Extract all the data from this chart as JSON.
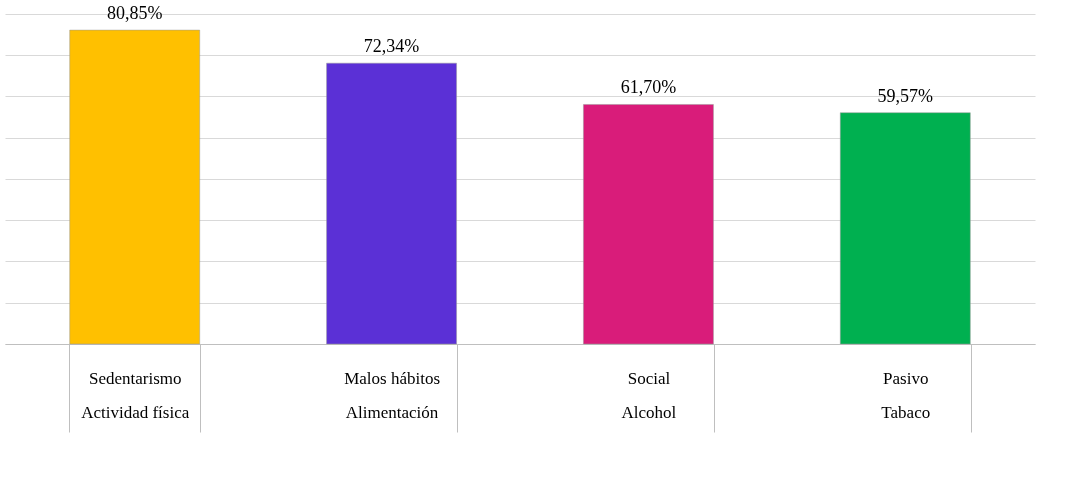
{
  "chart_data": {
    "type": "bar",
    "categories": [
      "Sedentarismo\nActividad física",
      "Malos hábitos\nAlimentación",
      "Social\nAlcohol",
      "Pasivo\nTabaco"
    ],
    "values": [
      80.85,
      72.34,
      61.7,
      59.57
    ],
    "colors": [
      "#ffc000",
      "#5b30d6",
      "#d91c7a",
      "#00b050"
    ],
    "value_labels": [
      "80,85%",
      "72,34%",
      "61,70%",
      "59,57%"
    ],
    "ylim": [
      0,
      85
    ],
    "yticks": [
      {
        "value": 0,
        "label": null
      },
      {
        "value": 10.6,
        "label": null
      },
      {
        "value": 21.3,
        "label": null
      },
      {
        "value": 31.9,
        "label": null
      },
      {
        "value": 42.5,
        "label": null
      },
      {
        "value": 53.1,
        "label": null
      },
      {
        "value": 63.8,
        "label": null
      },
      {
        "value": 74.4,
        "label": null
      },
      {
        "value": 85,
        "label": null
      }
    ],
    "grid": "y",
    "tick_labels": "x"
  }
}
